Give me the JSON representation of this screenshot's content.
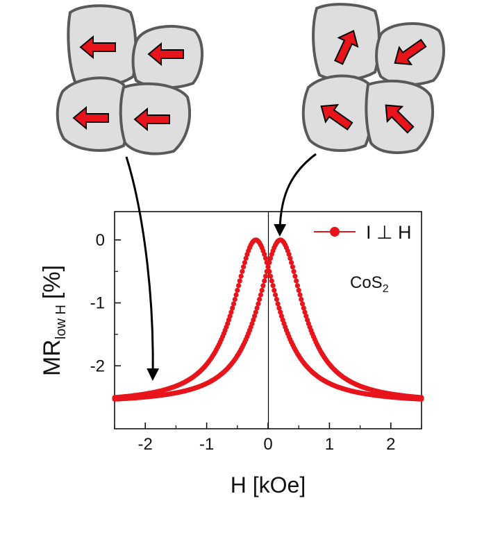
{
  "chart_data": {
    "type": "scatter",
    "xlabel": "H [kOe]",
    "ylabel": {
      "main": "MR",
      "subscript": "low H",
      "unit": "[%]"
    },
    "xlim": [
      -2.5,
      2.5
    ],
    "ylim": [
      -3.0,
      0.45
    ],
    "xticks": [
      -2,
      -1,
      0,
      1,
      2
    ],
    "yticks": [
      0,
      -1,
      -2
    ],
    "xtick_labels": [
      "-2",
      "-1",
      "0",
      "1",
      "2"
    ],
    "ytick_labels": [
      "0",
      "-1",
      "-2"
    ],
    "legend": {
      "label": "I ⊥ H",
      "position": "top-right",
      "color": "#e8141b"
    },
    "annotation": {
      "text": "CoS",
      "subscript": "2"
    },
    "vertical_line_at_x": 0,
    "series": [
      {
        "name": "I ⊥ H",
        "color": "#e8141b",
        "branches": [
          {
            "peak_x": -0.2,
            "peak_y": 0.0,
            "tail_y": -2.6,
            "width": 0.45
          },
          {
            "peak_x": 0.2,
            "peak_y": 0.0,
            "tail_y": -2.6,
            "width": 0.45
          }
        ]
      }
    ]
  },
  "grain_diagrams": [
    {
      "id": "aligned",
      "arrow_directions": [
        "left",
        "left",
        "left",
        "left"
      ]
    },
    {
      "id": "random",
      "arrow_directions": [
        "up-right",
        "down-left",
        "up-left",
        "up-left"
      ]
    }
  ],
  "colors": {
    "grain_fill": "#dedede",
    "grain_stroke": "#595959",
    "arrow_fill": "#e8141b"
  }
}
